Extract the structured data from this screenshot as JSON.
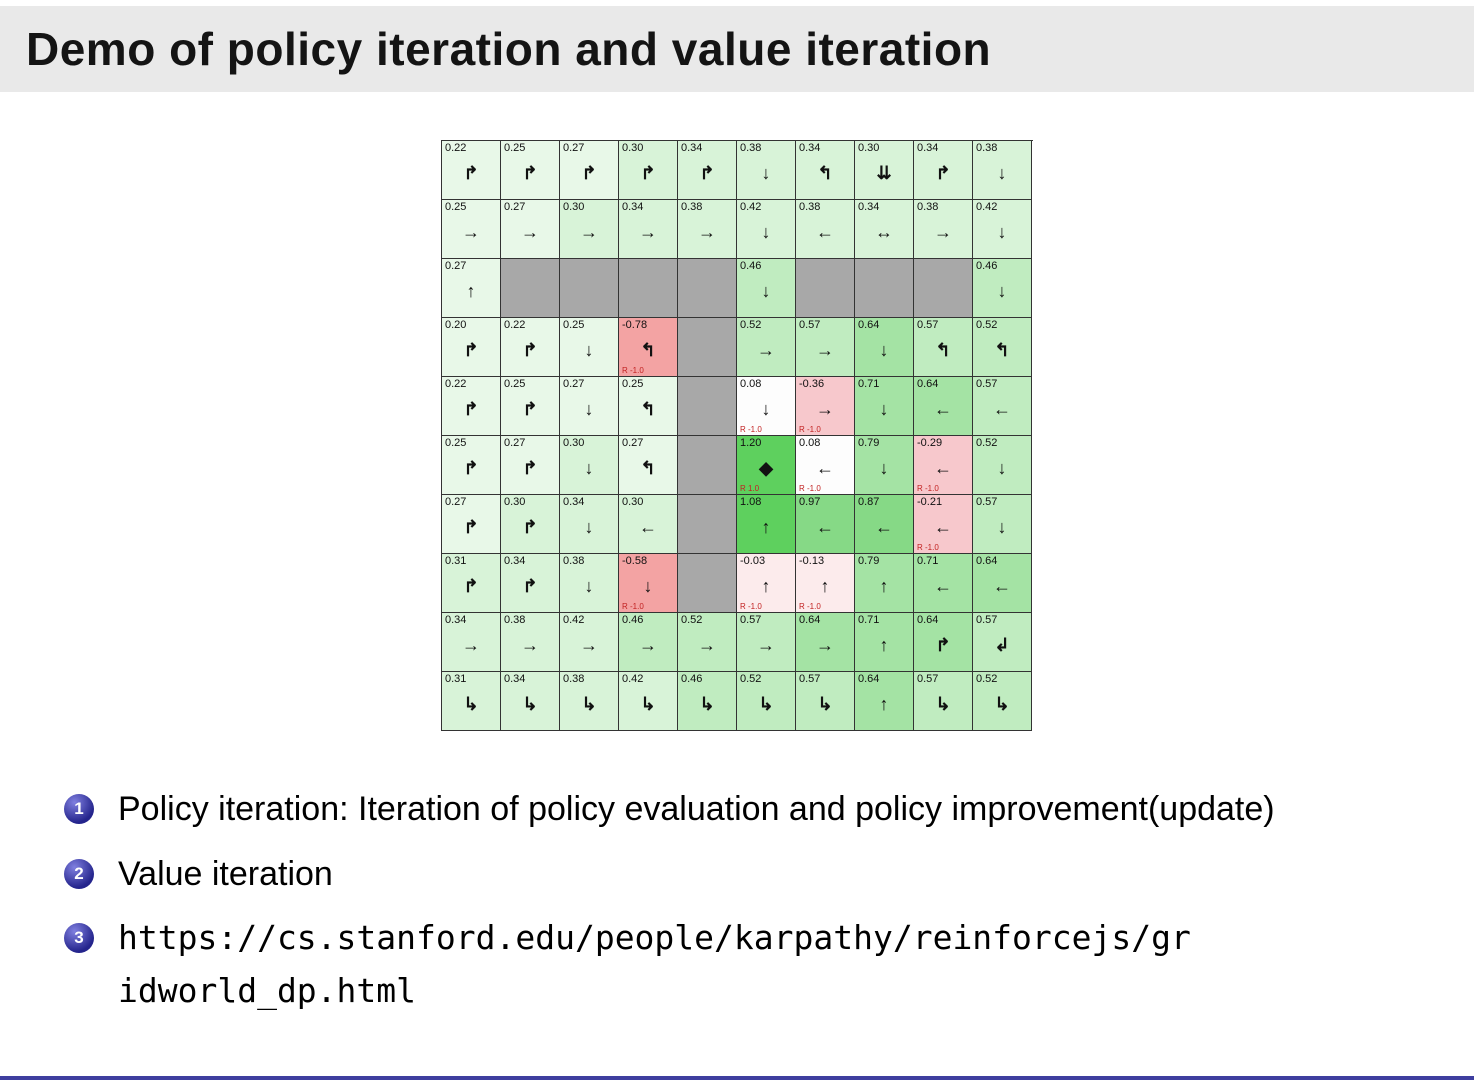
{
  "title": "Demo of policy iteration and value iteration",
  "grid": {
    "palette": {
      "wall": "#a8a8a8",
      "neg_strong": "#f3a3a3",
      "neg": "#f7c8cc",
      "neg_light": "#fcebec",
      "zero": "#fdfdfd",
      "g1": "#e8f8e8",
      "g2": "#d8f3d8",
      "g3": "#c0ecc0",
      "g4": "#a4e3a4",
      "g5": "#86d986",
      "g6": "#5ed05e"
    },
    "reward_color": "#c22222",
    "rows": [
      [
        {
          "v": "0.22",
          "a": "↱"
        },
        {
          "v": "0.25",
          "a": "↱"
        },
        {
          "v": "0.27",
          "a": "↱"
        },
        {
          "v": "0.30",
          "a": "↱"
        },
        {
          "v": "0.34",
          "a": "↱"
        },
        {
          "v": "0.38",
          "a": "↓"
        },
        {
          "v": "0.34",
          "a": "↰"
        },
        {
          "v": "0.30",
          "a": "⇊"
        },
        {
          "v": "0.34",
          "a": "↱"
        },
        {
          "v": "0.38",
          "a": "↓"
        }
      ],
      [
        {
          "v": "0.25",
          "a": "→"
        },
        {
          "v": "0.27",
          "a": "→"
        },
        {
          "v": "0.30",
          "a": "→"
        },
        {
          "v": "0.34",
          "a": "→"
        },
        {
          "v": "0.38",
          "a": "→"
        },
        {
          "v": "0.42",
          "a": "↓"
        },
        {
          "v": "0.38",
          "a": "←"
        },
        {
          "v": "0.34",
          "a": "↔"
        },
        {
          "v": "0.38",
          "a": "→"
        },
        {
          "v": "0.42",
          "a": "↓"
        }
      ],
      [
        {
          "v": "0.27",
          "a": "↑"
        },
        {
          "wall": true
        },
        {
          "wall": true
        },
        {
          "wall": true
        },
        {
          "wall": true
        },
        {
          "v": "0.46",
          "a": "↓"
        },
        {
          "wall": true
        },
        {
          "wall": true
        },
        {
          "wall": true
        },
        {
          "v": "0.46",
          "a": "↓"
        }
      ],
      [
        {
          "v": "0.20",
          "a": "↱"
        },
        {
          "v": "0.22",
          "a": "↱"
        },
        {
          "v": "0.25",
          "a": "↓"
        },
        {
          "v": "-0.78",
          "a": "↰",
          "r": "R -1.0"
        },
        {
          "wall": true
        },
        {
          "v": "0.52",
          "a": "→"
        },
        {
          "v": "0.57",
          "a": "→"
        },
        {
          "v": "0.64",
          "a": "↓"
        },
        {
          "v": "0.57",
          "a": "↰"
        },
        {
          "v": "0.52",
          "a": "↰"
        }
      ],
      [
        {
          "v": "0.22",
          "a": "↱"
        },
        {
          "v": "0.25",
          "a": "↱"
        },
        {
          "v": "0.27",
          "a": "↓"
        },
        {
          "v": "0.25",
          "a": "↰"
        },
        {
          "wall": true
        },
        {
          "v": "0.08",
          "a": "↓",
          "r": "R -1.0"
        },
        {
          "v": "-0.36",
          "a": "→",
          "r": "R -1.0"
        },
        {
          "v": "0.71",
          "a": "↓"
        },
        {
          "v": "0.64",
          "a": "←"
        },
        {
          "v": "0.57",
          "a": "←"
        }
      ],
      [
        {
          "v": "0.25",
          "a": "↱"
        },
        {
          "v": "0.27",
          "a": "↱"
        },
        {
          "v": "0.30",
          "a": "↓"
        },
        {
          "v": "0.27",
          "a": "↰"
        },
        {
          "wall": true
        },
        {
          "v": "1.20",
          "a": "◆",
          "r": "R 1.0"
        },
        {
          "v": "0.08",
          "a": "←",
          "r": "R -1.0"
        },
        {
          "v": "0.79",
          "a": "↓"
        },
        {
          "v": "-0.29",
          "a": "←",
          "r": "R -1.0"
        },
        {
          "v": "0.52",
          "a": "↓"
        }
      ],
      [
        {
          "v": "0.27",
          "a": "↱"
        },
        {
          "v": "0.30",
          "a": "↱"
        },
        {
          "v": "0.34",
          "a": "↓"
        },
        {
          "v": "0.30",
          "a": "←"
        },
        {
          "wall": true
        },
        {
          "v": "1.08",
          "a": "↑"
        },
        {
          "v": "0.97",
          "a": "←"
        },
        {
          "v": "0.87",
          "a": "←"
        },
        {
          "v": "-0.21",
          "a": "←",
          "r": "R -1.0"
        },
        {
          "v": "0.57",
          "a": "↓"
        }
      ],
      [
        {
          "v": "0.31",
          "a": "↱"
        },
        {
          "v": "0.34",
          "a": "↱"
        },
        {
          "v": "0.38",
          "a": "↓"
        },
        {
          "v": "-0.58",
          "a": "↓",
          "r": "R -1.0"
        },
        {
          "wall": true
        },
        {
          "v": "-0.03",
          "a": "↑",
          "r": "R -1.0"
        },
        {
          "v": "-0.13",
          "a": "↑",
          "r": "R -1.0"
        },
        {
          "v": "0.79",
          "a": "↑"
        },
        {
          "v": "0.71",
          "a": "←"
        },
        {
          "v": "0.64",
          "a": "←"
        }
      ],
      [
        {
          "v": "0.34",
          "a": "→"
        },
        {
          "v": "0.38",
          "a": "→"
        },
        {
          "v": "0.42",
          "a": "→"
        },
        {
          "v": "0.46",
          "a": "→"
        },
        {
          "v": "0.52",
          "a": "→"
        },
        {
          "v": "0.57",
          "a": "→"
        },
        {
          "v": "0.64",
          "a": "→"
        },
        {
          "v": "0.71",
          "a": "↑"
        },
        {
          "v": "0.64",
          "a": "↱"
        },
        {
          "v": "0.57",
          "a": "↲"
        }
      ],
      [
        {
          "v": "0.31",
          "a": "↳"
        },
        {
          "v": "0.34",
          "a": "↳"
        },
        {
          "v": "0.38",
          "a": "↳"
        },
        {
          "v": "0.42",
          "a": "↳"
        },
        {
          "v": "0.46",
          "a": "↳"
        },
        {
          "v": "0.52",
          "a": "↳"
        },
        {
          "v": "0.57",
          "a": "↳"
        },
        {
          "v": "0.64",
          "a": "↑"
        },
        {
          "v": "0.57",
          "a": "↳"
        },
        {
          "v": "0.52",
          "a": "↳"
        }
      ]
    ]
  },
  "items": [
    {
      "num": "1",
      "text": "Policy iteration: Iteration of policy evaluation and policy improvement(update)"
    },
    {
      "num": "2",
      "text": "Value iteration"
    },
    {
      "num": "3",
      "text": "https://cs.stanford.edu/people/karpathy/reinforcejs/gridworld_dp.html"
    }
  ],
  "colors": {
    "title_bg": "#e9e9e9",
    "badge_blue": "#24248c",
    "footer_bar": "#3e3e9f"
  }
}
